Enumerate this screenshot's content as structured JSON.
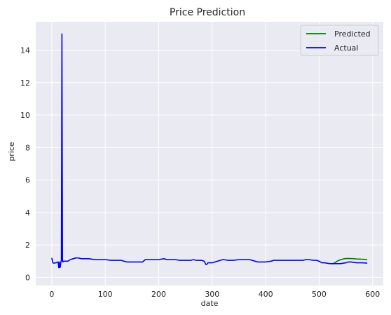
{
  "chart_data": {
    "type": "line",
    "title": "Price Prediction",
    "xlabel": "date",
    "ylabel": "price",
    "xlim": [
      -30,
      620
    ],
    "ylim": [
      -0.5,
      15.75
    ],
    "xticks": [
      "0",
      "100",
      "200",
      "300",
      "400",
      "500",
      "600"
    ],
    "yticks": [
      "0",
      "2",
      "4",
      "6",
      "8",
      "10",
      "12",
      "14"
    ],
    "grid": true,
    "legend_position": "top-right",
    "series": [
      {
        "name": "Predicted",
        "color": "#008000",
        "x": [
          525,
          530,
          535,
          540,
          545,
          550,
          555,
          560,
          565,
          570,
          575,
          580,
          585,
          590
        ],
        "y": [
          0.82,
          0.92,
          1.02,
          1.09,
          1.14,
          1.16,
          1.17,
          1.16,
          1.15,
          1.14,
          1.13,
          1.12,
          1.11,
          1.1
        ]
      },
      {
        "name": "Actual",
        "color": "#0000ff",
        "x": [
          0,
          2,
          4,
          8,
          12,
          13,
          14,
          15,
          16,
          17,
          18,
          19,
          20,
          21,
          22,
          25,
          30,
          35,
          40,
          45,
          50,
          55,
          60,
          70,
          80,
          90,
          100,
          110,
          120,
          130,
          135,
          140,
          150,
          160,
          170,
          175,
          180,
          190,
          200,
          210,
          215,
          220,
          230,
          240,
          250,
          260,
          265,
          270,
          280,
          285,
          288,
          290,
          292,
          295,
          300,
          310,
          315,
          320,
          330,
          340,
          350,
          360,
          370,
          380,
          385,
          390,
          400,
          410,
          415,
          420,
          430,
          440,
          450,
          460,
          470,
          475,
          480,
          490,
          495,
          500,
          505,
          510,
          520,
          530,
          540,
          550,
          555,
          560,
          570,
          580,
          590
        ],
        "y": [
          1.2,
          0.9,
          0.88,
          0.9,
          0.95,
          0.6,
          0.95,
          0.6,
          0.65,
          0.95,
          1.05,
          15.0,
          1.0,
          0.95,
          1.0,
          1.0,
          1.0,
          1.1,
          1.15,
          1.2,
          1.2,
          1.15,
          1.15,
          1.15,
          1.1,
          1.1,
          1.1,
          1.05,
          1.05,
          1.05,
          1.0,
          0.95,
          0.95,
          0.95,
          0.95,
          1.1,
          1.1,
          1.1,
          1.1,
          1.15,
          1.1,
          1.1,
          1.1,
          1.05,
          1.05,
          1.05,
          1.1,
          1.05,
          1.05,
          1.0,
          0.8,
          0.8,
          0.9,
          0.9,
          0.9,
          1.0,
          1.05,
          1.1,
          1.05,
          1.05,
          1.1,
          1.1,
          1.1,
          1.0,
          0.95,
          0.95,
          0.95,
          1.0,
          1.05,
          1.05,
          1.05,
          1.05,
          1.05,
          1.05,
          1.05,
          1.1,
          1.1,
          1.05,
          1.05,
          1.0,
          0.9,
          0.9,
          0.85,
          0.85,
          0.85,
          0.9,
          0.95,
          0.95,
          0.9,
          0.9,
          0.88
        ]
      }
    ]
  }
}
